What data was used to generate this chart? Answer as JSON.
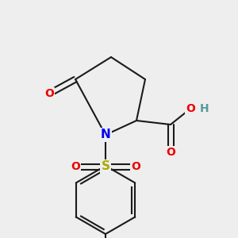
{
  "background_color": "#EEEEEE",
  "bond_color": "#1a1a1a",
  "atom_colors": {
    "N": "#0000EE",
    "O": "#EE0000",
    "S": "#AAAA00",
    "H": "#5a9a9a",
    "C": "#1a1a1a"
  },
  "figsize": [
    3.0,
    3.0
  ],
  "dpi": 100,
  "scale": 1.0
}
